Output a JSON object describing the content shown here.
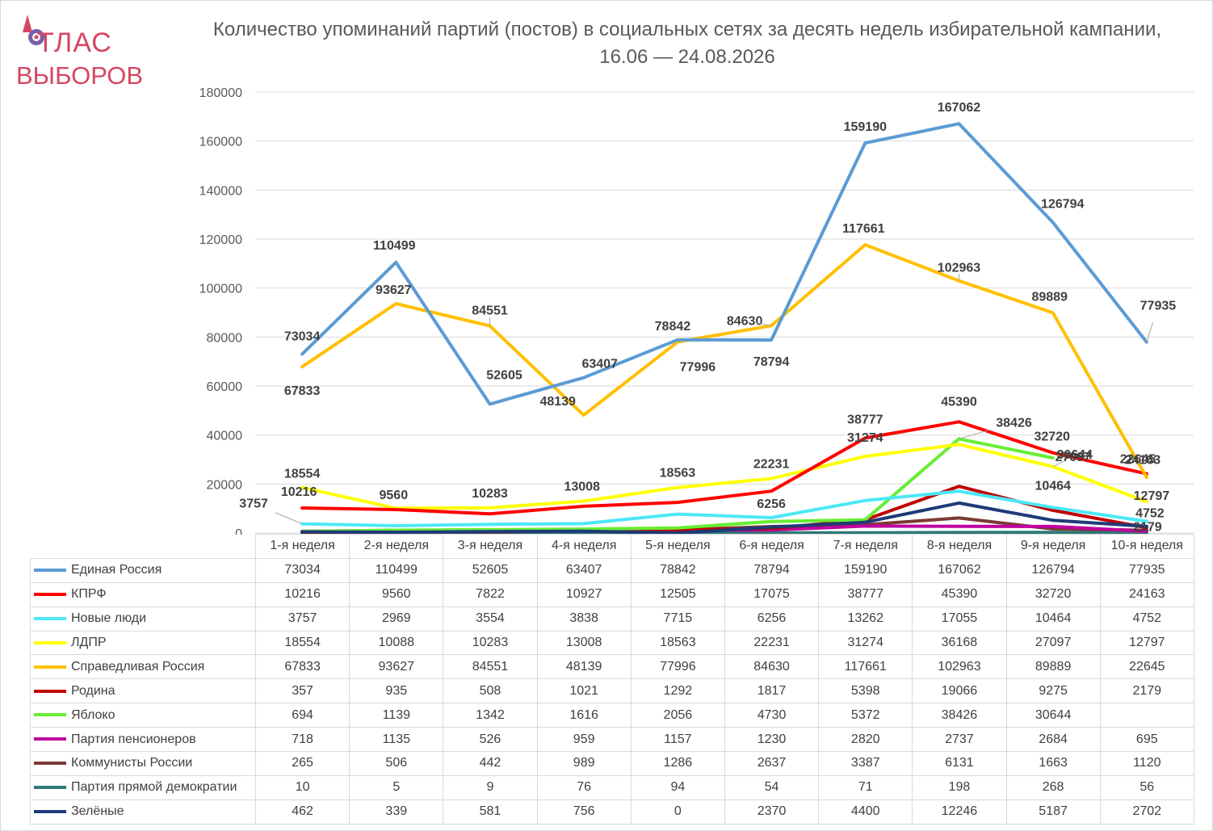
{
  "logo": {
    "line1": "ТЛАС",
    "line2": "ВЫБОРОВ",
    "full_text": "АТЛАС ВЫБОРОВ",
    "icon": "rocket-planet-icon",
    "color": "#d64661"
  },
  "chart_data": {
    "type": "line",
    "title": "Количество упоминаний партий (постов) в социальных сетях за десять недель избирательной кампании, 16.06 — 24.08.2026",
    "categories": [
      "1-я неделя",
      "2-я неделя",
      "3-я неделя",
      "4-я неделя",
      "5-я неделя",
      "6-я неделя",
      "7-я неделя",
      "8-я неделя",
      "9-я неделя",
      "10-я неделя"
    ],
    "ylim": [
      0,
      180000
    ],
    "yticks": [
      0,
      20000,
      40000,
      60000,
      80000,
      100000,
      120000,
      140000,
      160000,
      180000
    ],
    "grid": true,
    "legend": "data-table",
    "series": [
      {
        "name": "Единая Россия",
        "color": "#5b9bd5",
        "values": [
          73034,
          110499,
          52605,
          63407,
          78842,
          78794,
          159190,
          167062,
          126794,
          77935
        ]
      },
      {
        "name": "КПРФ",
        "color": "#ff0000",
        "values": [
          10216,
          9560,
          7822,
          10927,
          12505,
          17075,
          38777,
          45390,
          32720,
          24163
        ]
      },
      {
        "name": "Новые люди",
        "color": "#4ce8f7",
        "values": [
          3757,
          2969,
          3554,
          3838,
          7715,
          6256,
          13262,
          17055,
          10464,
          4752
        ]
      },
      {
        "name": "ЛДПР",
        "color": "#ffff00",
        "values": [
          18554,
          10088,
          10283,
          13008,
          18563,
          22231,
          31274,
          36168,
          27097,
          12797
        ]
      },
      {
        "name": "Справедливая Россия",
        "color": "#ffc000",
        "values": [
          67833,
          93627,
          84551,
          48139,
          77996,
          84630,
          117661,
          102963,
          89889,
          22645
        ]
      },
      {
        "name": "Родина",
        "color": "#c00000",
        "values": [
          357,
          935,
          508,
          1021,
          1292,
          1817,
          5398,
          19066,
          9275,
          2179
        ]
      },
      {
        "name": "Яблоко",
        "color": "#66ee33",
        "values": [
          694,
          1139,
          1342,
          1616,
          2056,
          4730,
          5372,
          38426,
          30644,
          null
        ]
      },
      {
        "name": "Партия пенсионеров",
        "color": "#c000a0",
        "values": [
          718,
          1135,
          526,
          959,
          1157,
          1230,
          2820,
          2737,
          2684,
          695
        ]
      },
      {
        "name": "Коммунисты России",
        "color": "#7b3b34",
        "values": [
          265,
          506,
          442,
          989,
          1286,
          2637,
          3387,
          6131,
          1663,
          1120
        ]
      },
      {
        "name": "Партия прямой демократии",
        "color": "#2e7878",
        "values": [
          10,
          5,
          9,
          76,
          94,
          54,
          71,
          198,
          268,
          56
        ]
      },
      {
        "name": "Зелёные",
        "color": "#1f3a78",
        "values": [
          462,
          339,
          581,
          756,
          0,
          2370,
          4400,
          12246,
          5187,
          2702
        ]
      }
    ],
    "data_labels": [
      {
        "text": "73034",
        "series": 0,
        "index": 0
      },
      {
        "text": "110499",
        "series": 0,
        "index": 1
      },
      {
        "text": "52605",
        "series": 0,
        "index": 2
      },
      {
        "text": "63407",
        "series": 0,
        "index": 3
      },
      {
        "text": "78842",
        "series": 0,
        "index": 4
      },
      {
        "text": "78794",
        "series": 0,
        "index": 5
      },
      {
        "text": "159190",
        "series": 0,
        "index": 6
      },
      {
        "text": "167062",
        "series": 0,
        "index": 7
      },
      {
        "text": "126794",
        "series": 0,
        "index": 8
      },
      {
        "text": "77935",
        "series": 0,
        "index": 9
      },
      {
        "text": "67833",
        "series": 4,
        "index": 0
      },
      {
        "text": "93627",
        "series": 4,
        "index": 1
      },
      {
        "text": "84551",
        "series": 4,
        "index": 2
      },
      {
        "text": "48139",
        "series": 4,
        "index": 3
      },
      {
        "text": "77996",
        "series": 4,
        "index": 4
      },
      {
        "text": "84630",
        "series": 4,
        "index": 5
      },
      {
        "text": "117661",
        "series": 4,
        "index": 6
      },
      {
        "text": "102963",
        "series": 4,
        "index": 7
      },
      {
        "text": "89889",
        "series": 4,
        "index": 8
      },
      {
        "text": "22645",
        "series": 4,
        "index": 9
      },
      {
        "text": "18554",
        "series": 3,
        "index": 0
      },
      {
        "text": "10216",
        "series": 1,
        "index": 0
      },
      {
        "text": "3757",
        "series": 2,
        "index": 0
      },
      {
        "text": "9560",
        "series": 1,
        "index": 1
      },
      {
        "text": "10283",
        "series": 3,
        "index": 2
      },
      {
        "text": "13008",
        "series": 3,
        "index": 3
      },
      {
        "text": "18563",
        "series": 3,
        "index": 4
      },
      {
        "text": "22231",
        "series": 3,
        "index": 5
      },
      {
        "text": "6256",
        "series": 2,
        "index": 5
      },
      {
        "text": "38777",
        "series": 1,
        "index": 6
      },
      {
        "text": "31274",
        "series": 3,
        "index": 6
      },
      {
        "text": "45390",
        "series": 1,
        "index": 7
      },
      {
        "text": "38426",
        "series": 6,
        "index": 7
      },
      {
        "text": "32720",
        "series": 1,
        "index": 8
      },
      {
        "text": "30644",
        "series": 6,
        "index": 8
      },
      {
        "text": "27097",
        "series": 3,
        "index": 8
      },
      {
        "text": "10464",
        "series": 2,
        "index": 8
      },
      {
        "text": "24163",
        "series": 1,
        "index": 9
      },
      {
        "text": "12797",
        "series": 3,
        "index": 9
      },
      {
        "text": "4752",
        "series": 2,
        "index": 9
      },
      {
        "text": "2179",
        "series": 5,
        "index": 9
      }
    ]
  }
}
